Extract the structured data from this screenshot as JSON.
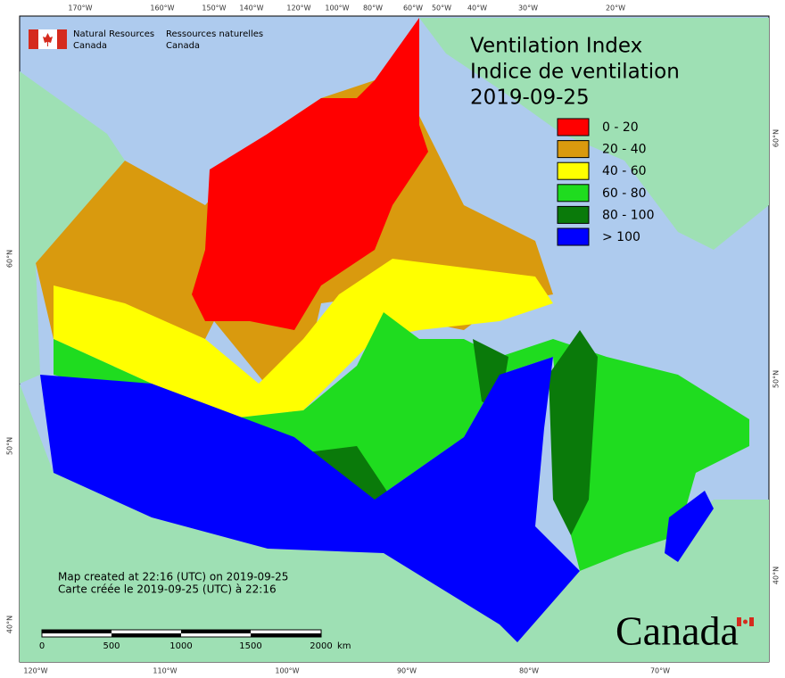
{
  "header": {
    "title_en": "Ventilation Index",
    "title_fr": "Indice de ventilation",
    "date": "2019-09-25"
  },
  "agency": {
    "en": [
      "Natural Resources",
      "Canada"
    ],
    "fr": [
      "Ressources naturelles",
      "Canada"
    ]
  },
  "legend": [
    {
      "label": "0 - 20",
      "color": "#ff0000"
    },
    {
      "label": "20 - 40",
      "color": "#d99a0e"
    },
    {
      "label": "40 - 60",
      "color": "#ffff00"
    },
    {
      "label": "60 - 80",
      "color": "#1fdc1f"
    },
    {
      "label": "80 - 100",
      "color": "#0a7a0a"
    },
    {
      "label": "> 100",
      "color": "#0000ff"
    }
  ],
  "top_longitudes": [
    "170°W",
    "160°W",
    "150°W",
    "140°W",
    "120°W",
    "100°W",
    "80°W",
    "60°W",
    "50°W",
    "40°W",
    "30°W",
    "20°W"
  ],
  "bottom_longitudes": [
    "120°W",
    "110°W",
    "100°W",
    "90°W",
    "80°W",
    "70°W"
  ],
  "left_latitudes": [
    "60°N",
    "50°N",
    "40°N"
  ],
  "right_latitudes": [
    "60°N",
    "50°N",
    "40°N"
  ],
  "footer": {
    "created_en": "Map created at 22:16 (UTC) on 2019-09-25",
    "created_fr": "Carte créée le 2019-09-25 (UTC) à 22:16"
  },
  "scale_bar": {
    "labels": [
      "0",
      "500",
      "1000",
      "1500",
      "2000"
    ],
    "unit": "km"
  },
  "wordmark": "Canada"
}
